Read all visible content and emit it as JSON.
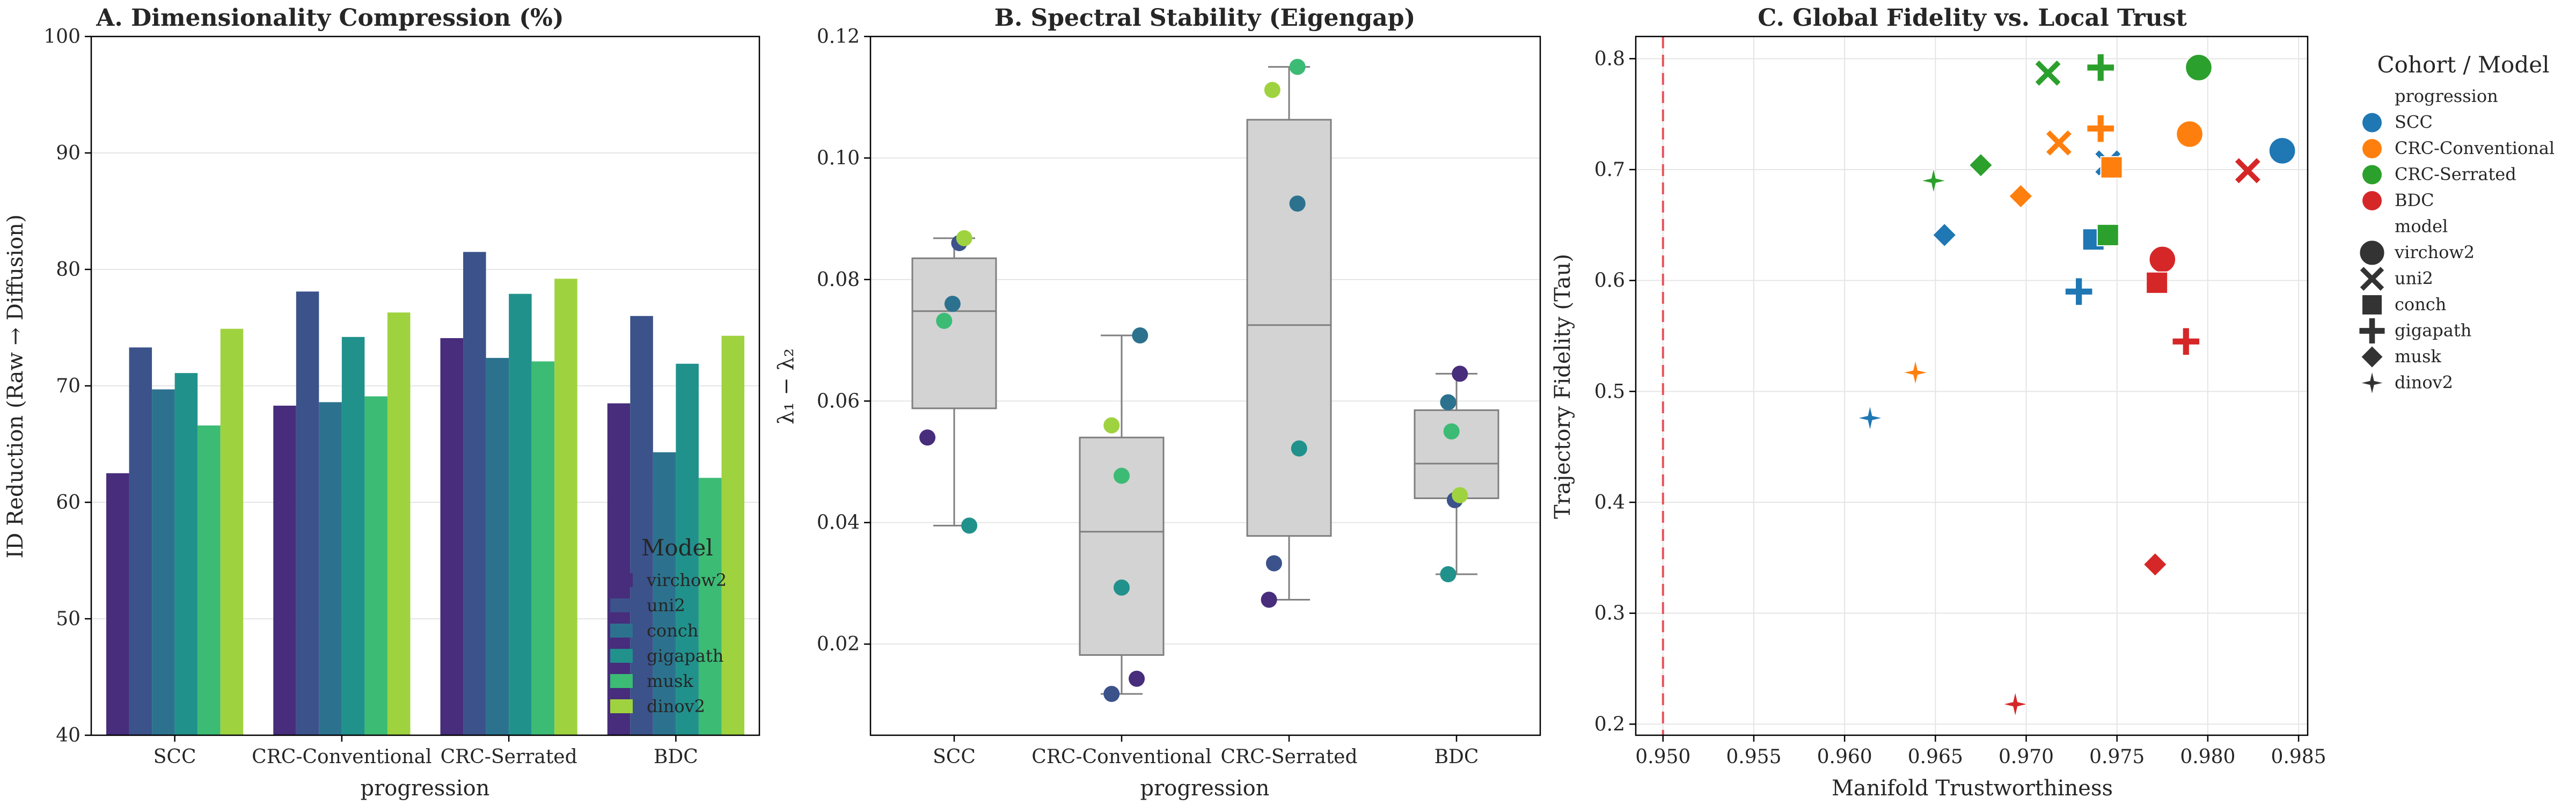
{
  "chart_data": [
    {
      "type": "bar",
      "title": "A. Dimensionality Compression (%)",
      "xlabel": "progression",
      "ylabel": "ID Reduction (Raw → Diffusion)",
      "ylim": [
        40,
        100
      ],
      "yticks": [
        40,
        50,
        60,
        70,
        80,
        90,
        100
      ],
      "categories": [
        "SCC",
        "CRC-Conventional",
        "CRC-Serrated",
        "BDC"
      ],
      "legend": {
        "title": "Model",
        "placement": "lower-right"
      },
      "series": [
        {
          "name": "virchow2",
          "color": "#472d7b",
          "values": [
            62.5,
            68.3,
            74.1,
            68.5
          ]
        },
        {
          "name": "uni2",
          "color": "#3b528b",
          "values": [
            73.3,
            78.1,
            81.5,
            76.0
          ]
        },
        {
          "name": "conch",
          "color": "#2c728e",
          "values": [
            69.7,
            68.6,
            72.4,
            64.3
          ]
        },
        {
          "name": "gigapath",
          "color": "#21918c",
          "values": [
            71.1,
            74.2,
            77.9,
            71.9
          ]
        },
        {
          "name": "musk",
          "color": "#3cbb75",
          "values": [
            66.6,
            69.1,
            72.1,
            62.1
          ]
        },
        {
          "name": "dinov2",
          "color": "#9fd23f",
          "values": [
            74.9,
            76.3,
            79.2,
            74.3
          ]
        }
      ]
    },
    {
      "type": "box",
      "title": "B. Spectral Stability (Eigengap)",
      "xlabel": "progression",
      "ylabel": "λ₁ − λ₂",
      "ylim": [
        0.005,
        0.12
      ],
      "yticks": [
        0.02,
        0.04,
        0.06,
        0.08,
        0.1,
        0.12
      ],
      "ytick_labels": [
        "0.02",
        "0.04",
        "0.06",
        "0.08",
        "0.10",
        "0.12"
      ],
      "categories": [
        "SCC",
        "CRC-Conventional",
        "CRC-Serrated",
        "BDC"
      ],
      "boxes": [
        {
          "q1": 0.0588,
          "median": 0.0748,
          "q3": 0.0835,
          "whisker_low": 0.0395,
          "whisker_high": 0.0868
        },
        {
          "q1": 0.0182,
          "median": 0.0385,
          "q3": 0.054,
          "whisker_low": 0.0118,
          "whisker_high": 0.0708
        },
        {
          "q1": 0.0378,
          "median": 0.0725,
          "q3": 0.1063,
          "whisker_low": 0.0273,
          "whisker_high": 0.115
        },
        {
          "q1": 0.044,
          "median": 0.0497,
          "q3": 0.0585,
          "whisker_low": 0.0315,
          "whisker_high": 0.0645
        }
      ],
      "points": [
        {
          "x": 0,
          "y": 0.054,
          "model": "virchow2",
          "jitter": -0.16
        },
        {
          "x": 0,
          "y": 0.086,
          "model": "uni2",
          "jitter": 0.03
        },
        {
          "x": 0,
          "y": 0.076,
          "model": "conch",
          "jitter": -0.01
        },
        {
          "x": 0,
          "y": 0.0395,
          "model": "gigapath",
          "jitter": 0.09
        },
        {
          "x": 0,
          "y": 0.0732,
          "model": "musk",
          "jitter": -0.06
        },
        {
          "x": 0,
          "y": 0.0868,
          "model": "dinov2",
          "jitter": 0.06
        },
        {
          "x": 1,
          "y": 0.0143,
          "model": "virchow2",
          "jitter": 0.09
        },
        {
          "x": 1,
          "y": 0.0118,
          "model": "uni2",
          "jitter": -0.06
        },
        {
          "x": 1,
          "y": 0.0708,
          "model": "conch",
          "jitter": 0.11
        },
        {
          "x": 1,
          "y": 0.0293,
          "model": "gigapath",
          "jitter": 0.0
        },
        {
          "x": 1,
          "y": 0.0477,
          "model": "musk",
          "jitter": 0.0
        },
        {
          "x": 1,
          "y": 0.056,
          "model": "dinov2",
          "jitter": -0.06
        },
        {
          "x": 2,
          "y": 0.0273,
          "model": "virchow2",
          "jitter": -0.12
        },
        {
          "x": 2,
          "y": 0.0333,
          "model": "uni2",
          "jitter": -0.09
        },
        {
          "x": 2,
          "y": 0.0925,
          "model": "conch",
          "jitter": 0.05
        },
        {
          "x": 2,
          "y": 0.0522,
          "model": "gigapath",
          "jitter": 0.06
        },
        {
          "x": 2,
          "y": 0.115,
          "model": "musk",
          "jitter": 0.05
        },
        {
          "x": 2,
          "y": 0.1112,
          "model": "dinov2",
          "jitter": -0.1
        },
        {
          "x": 3,
          "y": 0.0645,
          "model": "virchow2",
          "jitter": 0.02
        },
        {
          "x": 3,
          "y": 0.0437,
          "model": "uni2",
          "jitter": -0.01
        },
        {
          "x": 3,
          "y": 0.0598,
          "model": "conch",
          "jitter": -0.05
        },
        {
          "x": 3,
          "y": 0.0315,
          "model": "gigapath",
          "jitter": -0.05
        },
        {
          "x": 3,
          "y": 0.055,
          "model": "musk",
          "jitter": -0.03
        },
        {
          "x": 3,
          "y": 0.0445,
          "model": "dinov2",
          "jitter": 0.02
        }
      ],
      "point_colors": {
        "virchow2": "#472d7b",
        "uni2": "#3b528b",
        "conch": "#2c728e",
        "gigapath": "#21918c",
        "musk": "#3cbb75",
        "dinov2": "#9fd23f"
      }
    },
    {
      "type": "scatter",
      "title": "C. Global Fidelity vs. Local Trust",
      "xlabel": "Manifold Trustworthiness",
      "ylabel": "Trajectory Fidelity (Tau)",
      "xlim": [
        0.9485,
        0.9855
      ],
      "ylim": [
        0.19,
        0.82
      ],
      "xticks": [
        0.95,
        0.955,
        0.96,
        0.965,
        0.97,
        0.975,
        0.98,
        0.985
      ],
      "xtick_labels": [
        "0.950",
        "0.955",
        "0.960",
        "0.965",
        "0.970",
        "0.975",
        "0.980",
        "0.985"
      ],
      "yticks": [
        0.2,
        0.3,
        0.4,
        0.5,
        0.6,
        0.7,
        0.8
      ],
      "ytick_labels": [
        "0.2",
        "0.3",
        "0.4",
        "0.5",
        "0.6",
        "0.7",
        "0.8"
      ],
      "reference_line_x": 0.95,
      "reference_line_color": "#e8525a",
      "cohort_colors": {
        "SCC": "#1f77b4",
        "CRC-Conventional": "#ff7f0e",
        "CRC-Serrated": "#2ca02c",
        "BDC": "#d62728"
      },
      "points": [
        {
          "cohort": "SCC",
          "model": "virchow2",
          "x": 0.9841,
          "y": 0.717
        },
        {
          "cohort": "SCC",
          "model": "uni2",
          "x": 0.9745,
          "y": 0.706
        },
        {
          "cohort": "SCC",
          "model": "conch",
          "x": 0.9737,
          "y": 0.637
        },
        {
          "cohort": "SCC",
          "model": "gigapath",
          "x": 0.9729,
          "y": 0.59
        },
        {
          "cohort": "SCC",
          "model": "musk",
          "x": 0.9655,
          "y": 0.641
        },
        {
          "cohort": "SCC",
          "model": "dinov2",
          "x": 0.9614,
          "y": 0.476
        },
        {
          "cohort": "CRC-Conventional",
          "model": "virchow2",
          "x": 0.979,
          "y": 0.732
        },
        {
          "cohort": "CRC-Conventional",
          "model": "uni2",
          "x": 0.9718,
          "y": 0.724
        },
        {
          "cohort": "CRC-Conventional",
          "model": "conch",
          "x": 0.9747,
          "y": 0.702
        },
        {
          "cohort": "CRC-Conventional",
          "model": "gigapath",
          "x": 0.9741,
          "y": 0.737
        },
        {
          "cohort": "CRC-Conventional",
          "model": "musk",
          "x": 0.9697,
          "y": 0.676
        },
        {
          "cohort": "CRC-Conventional",
          "model": "dinov2",
          "x": 0.9639,
          "y": 0.517
        },
        {
          "cohort": "CRC-Serrated",
          "model": "virchow2",
          "x": 0.9795,
          "y": 0.792
        },
        {
          "cohort": "CRC-Serrated",
          "model": "uni2",
          "x": 0.9712,
          "y": 0.787
        },
        {
          "cohort": "CRC-Serrated",
          "model": "conch",
          "x": 0.9745,
          "y": 0.641
        },
        {
          "cohort": "CRC-Serrated",
          "model": "gigapath",
          "x": 0.9741,
          "y": 0.792
        },
        {
          "cohort": "CRC-Serrated",
          "model": "musk",
          "x": 0.9675,
          "y": 0.704
        },
        {
          "cohort": "CRC-Serrated",
          "model": "dinov2",
          "x": 0.9649,
          "y": 0.69
        },
        {
          "cohort": "BDC",
          "model": "virchow2",
          "x": 0.9775,
          "y": 0.619
        },
        {
          "cohort": "BDC",
          "model": "uni2",
          "x": 0.9822,
          "y": 0.699
        },
        {
          "cohort": "BDC",
          "model": "conch",
          "x": 0.9772,
          "y": 0.598
        },
        {
          "cohort": "BDC",
          "model": "gigapath",
          "x": 0.9788,
          "y": 0.545
        },
        {
          "cohort": "BDC",
          "model": "musk",
          "x": 0.9771,
          "y": 0.344
        },
        {
          "cohort": "BDC",
          "model": "dinov2",
          "x": 0.9694,
          "y": 0.218
        }
      ],
      "legend": {
        "title": "Cohort / Model",
        "placement": "right-outside",
        "hue_title": "progression",
        "hue_items": [
          "SCC",
          "CRC-Conventional",
          "CRC-Serrated",
          "BDC"
        ],
        "style_title": "model",
        "style_items": [
          "virchow2",
          "uni2",
          "conch",
          "gigapath",
          "musk",
          "dinov2"
        ]
      }
    }
  ]
}
